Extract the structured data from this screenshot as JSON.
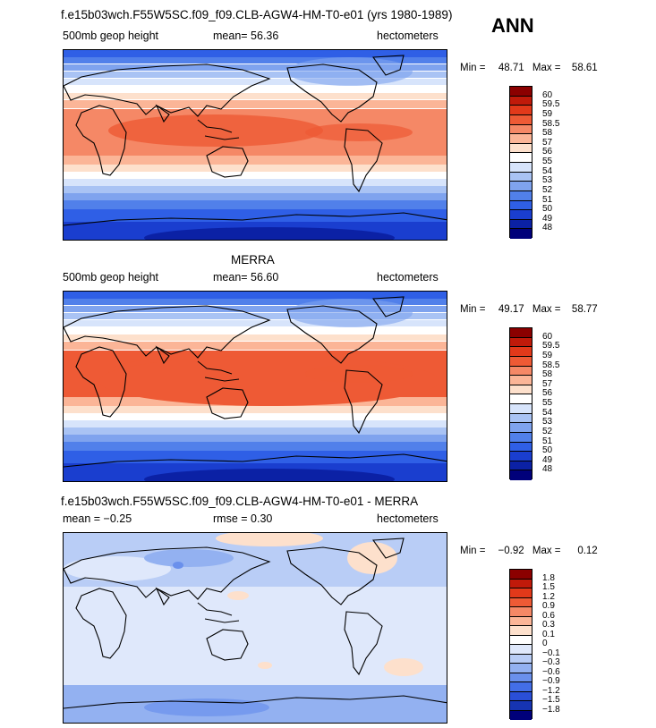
{
  "page": {
    "case_title": "f.e15b03wch.F55W5SC.f09_f09.CLB-AGW4-HM-T0-e01 (yrs 1980-1989)",
    "season": "ANN"
  },
  "panels": [
    {
      "title": "",
      "field": "500mb geop height",
      "stat": "mean=  56.36",
      "units": "hectometers",
      "min_label": "Min =",
      "min_value": "48.71",
      "max_label": "Max =",
      "max_value": "58.61",
      "colorbar_labels": [
        "60",
        "59.5",
        "59",
        "58.5",
        "58",
        "57",
        "56",
        "55",
        "54",
        "53",
        "52",
        "51",
        "50",
        "49",
        "48"
      ]
    },
    {
      "title": "MERRA",
      "field": "500mb geop height",
      "stat": "mean=  56.60",
      "units": "hectometers",
      "min_label": "Min =",
      "min_value": "49.17",
      "max_label": "Max =",
      "max_value": "58.77",
      "colorbar_labels": [
        "60",
        "59.5",
        "59",
        "58.5",
        "58",
        "57",
        "56",
        "55",
        "54",
        "53",
        "52",
        "51",
        "50",
        "49",
        "48"
      ]
    },
    {
      "title": "f.e15b03wch.F55W5SC.f09_f09.CLB-AGW4-HM-T0-e01 - MERRA",
      "field": "mean =  −0.25",
      "stat": "rmse =   0.30",
      "units": "hectometers",
      "min_label": "Min =",
      "min_value": "−0.92",
      "max_label": "Max =",
      "max_value": "0.12",
      "colorbar_labels": [
        "1.8",
        "1.5",
        "1.2",
        "0.9",
        "0.6",
        "0.3",
        "0.1",
        "0",
        "−0.1",
        "−0.3",
        "−0.6",
        "−0.9",
        "−1.2",
        "−1.5",
        "−1.8"
      ]
    }
  ],
  "colors": {
    "abs_scale": [
      "#8b0000",
      "#c01a0a",
      "#e2391a",
      "#ee5a35",
      "#f58866",
      "#fbb597",
      "#fde0cc",
      "#ffffff",
      "#d7e4fb",
      "#a9c3f4",
      "#7fa3ee",
      "#5180ea",
      "#2f5fe6",
      "#1a3ecf",
      "#0b21a5",
      "#00007a"
    ],
    "diff_scale": [
      "#8b0000",
      "#c01a0a",
      "#e2391a",
      "#ee5a35",
      "#f58866",
      "#fbb597",
      "#fde0cc",
      "#ffffff",
      "#dfe8fb",
      "#b9cdf6",
      "#93b1f1",
      "#6a90ec",
      "#436ee7",
      "#2a4fd8",
      "#1634b2",
      "#00007a"
    ],
    "map_border": "#000000",
    "coast": "#000000"
  }
}
